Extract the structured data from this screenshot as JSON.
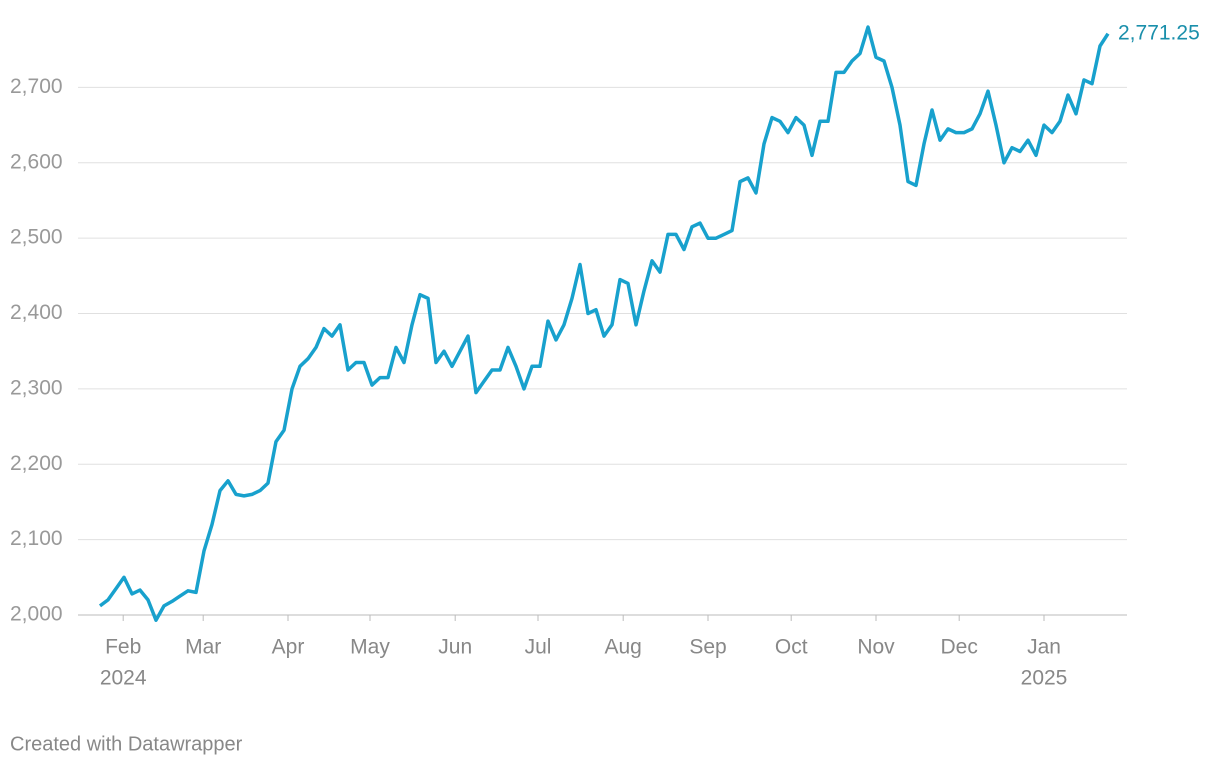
{
  "chart_data": {
    "type": "line",
    "series": [
      {
        "color": "#18a1cd",
        "label_color": "#1a8fab",
        "values": [
          2012,
          2020,
          2035,
          2050,
          2028,
          2033,
          2020,
          1993,
          2012,
          2018,
          2025,
          2032,
          2030,
          2085,
          2120,
          2165,
          2178,
          2160,
          2158,
          2160,
          2165,
          2175,
          2230,
          2245,
          2300,
          2330,
          2340,
          2355,
          2380,
          2370,
          2385,
          2325,
          2335,
          2335,
          2305,
          2315,
          2315,
          2355,
          2335,
          2385,
          2425,
          2420,
          2335,
          2350,
          2330,
          2350,
          2370,
          2295,
          2310,
          2325,
          2325,
          2355,
          2330,
          2300,
          2330,
          2330,
          2390,
          2365,
          2385,
          2420,
          2465,
          2400,
          2405,
          2370,
          2385,
          2445,
          2440,
          2385,
          2430,
          2470,
          2455,
          2505,
          2505,
          2485,
          2515,
          2520,
          2500,
          2500,
          2505,
          2510,
          2575,
          2580,
          2560,
          2625,
          2660,
          2655,
          2640,
          2660,
          2650,
          2610,
          2655,
          2655,
          2720,
          2720,
          2735,
          2745,
          2780,
          2740,
          2735,
          2700,
          2650,
          2575,
          2570,
          2625,
          2670,
          2630,
          2645,
          2640,
          2640,
          2645,
          2665,
          2695,
          2650,
          2600,
          2620,
          2615,
          2630,
          2610,
          2650,
          2640,
          2655,
          2690,
          2665,
          2710,
          2705,
          2755,
          2771.25
        ],
        "value_labels": [
          null,
          null,
          null,
          null,
          null,
          null,
          null,
          null,
          null,
          null,
          null,
          null,
          null,
          null,
          null,
          null,
          null,
          null,
          null,
          null,
          null,
          null,
          null,
          null,
          null,
          null,
          null,
          null,
          null,
          null,
          null,
          null,
          null,
          null,
          null,
          null,
          null,
          null,
          null,
          null,
          null,
          null,
          null,
          null,
          null,
          null,
          null,
          null,
          null,
          null,
          null,
          null,
          null,
          null,
          null,
          null,
          null,
          null,
          null,
          null,
          null,
          null,
          null,
          null,
          null,
          null,
          null,
          null,
          null,
          null,
          null,
          null,
          null,
          null,
          null,
          null,
          null,
          null,
          null,
          null,
          null,
          null,
          null,
          null,
          null,
          null,
          null,
          null,
          null,
          null,
          null,
          null,
          null,
          null,
          null,
          null,
          null,
          null,
          null,
          null,
          null,
          null,
          null,
          null,
          null,
          null,
          null,
          null,
          null,
          null,
          null,
          null,
          null,
          null,
          null,
          null,
          null,
          null,
          null,
          null,
          null,
          null,
          null,
          null,
          null,
          null,
          "2,771.25"
        ]
      }
    ],
    "ylim": [
      1990,
      2790
    ],
    "yticks": [
      {
        "value": 2000,
        "label": "2,000"
      },
      {
        "value": 2100,
        "label": "2,100"
      },
      {
        "value": 2200,
        "label": "2,200"
      },
      {
        "value": 2300,
        "label": "2,300"
      },
      {
        "value": 2400,
        "label": "2,400"
      },
      {
        "value": 2500,
        "label": "2,500"
      },
      {
        "value": 2600,
        "label": "2,600"
      },
      {
        "value": 2700,
        "label": "2,700"
      }
    ],
    "xticks": [
      {
        "value": 2.9,
        "label": "Feb"
      },
      {
        "value": 12.9,
        "label": "Mar"
      },
      {
        "value": 23.5,
        "label": "Apr"
      },
      {
        "value": 33.75,
        "label": "May"
      },
      {
        "value": 44.4,
        "label": "Jun"
      },
      {
        "value": 54.75,
        "label": "Jul"
      },
      {
        "value": 65.4,
        "label": "Aug"
      },
      {
        "value": 76,
        "label": "Sep"
      },
      {
        "value": 86.4,
        "label": "Oct"
      },
      {
        "value": 97,
        "label": "Nov"
      },
      {
        "value": 107.4,
        "label": "Dec"
      },
      {
        "value": 118,
        "label": "Jan"
      }
    ],
    "year_ticks": [
      {
        "value": 2.9,
        "label": "2024"
      },
      {
        "value": 118,
        "label": "2025"
      }
    ],
    "grid": true,
    "footer": "Created with Datawrapper"
  }
}
